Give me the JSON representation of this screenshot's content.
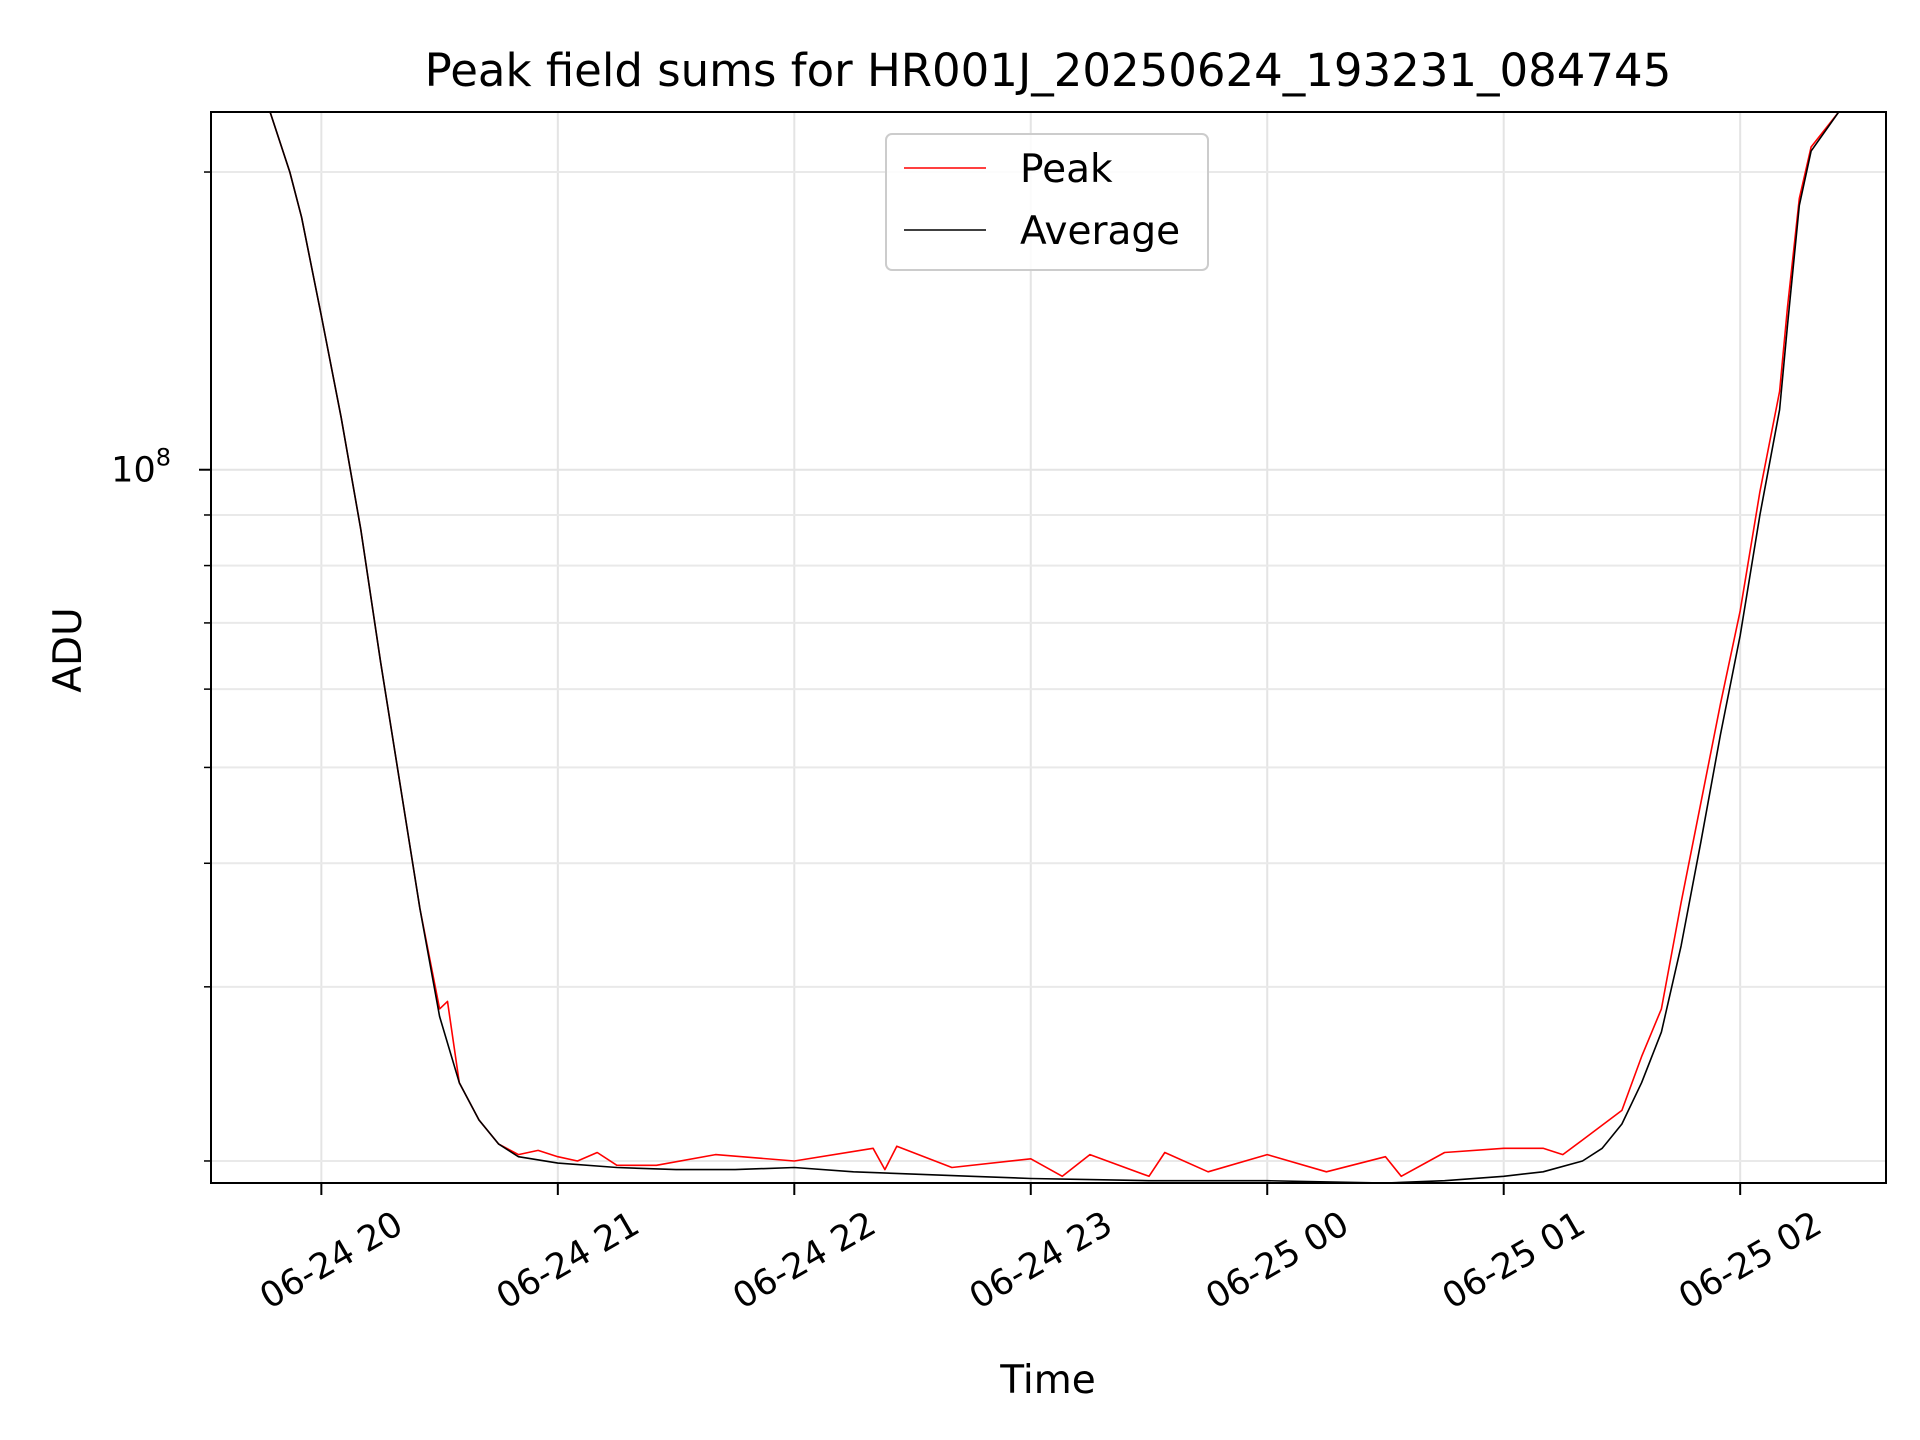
{
  "chart_data": {
    "type": "line",
    "title": "Peak field sums for HR001J_20250624_193231_084745",
    "xlabel": "Time",
    "ylabel": "ADU",
    "y_scale": "log",
    "grid": true,
    "legend_placement": "upper center",
    "xlim": [
      "2025-06-24 19:32",
      "2025-06-25 02:37"
    ],
    "ylim": [
      19000000,
      230000000
    ],
    "x_ticks": [
      "06-24 20",
      "06-24 21",
      "06-24 22",
      "06-24 23",
      "06-25 00",
      "06-25 01",
      "06-25 02"
    ],
    "y_ticks": [
      {
        "base": "10",
        "exp": "8"
      }
    ],
    "series": [
      {
        "name": "Peak",
        "color": "#ff0000",
        "x": [
          "2025-06-24 19:32",
          "2025-06-24 19:47",
          "2025-06-24 19:52",
          "2025-06-24 19:55",
          "2025-06-24 20:00",
          "2025-06-24 20:05",
          "2025-06-24 20:10",
          "2025-06-24 20:15",
          "2025-06-24 20:20",
          "2025-06-24 20:25",
          "2025-06-24 20:30",
          "2025-06-24 20:32",
          "2025-06-24 20:35",
          "2025-06-24 20:40",
          "2025-06-24 20:45",
          "2025-06-24 20:50",
          "2025-06-24 20:55",
          "2025-06-24 21:00",
          "2025-06-24 21:05",
          "2025-06-24 21:10",
          "2025-06-24 21:15",
          "2025-06-24 21:25",
          "2025-06-24 21:40",
          "2025-06-24 22:00",
          "2025-06-24 22:20",
          "2025-06-24 22:23",
          "2025-06-24 22:26",
          "2025-06-24 22:40",
          "2025-06-24 23:00",
          "2025-06-24 23:08",
          "2025-06-24 23:15",
          "2025-06-24 23:30",
          "2025-06-24 23:34",
          "2025-06-24 23:45",
          "2025-06-25 00:00",
          "2025-06-25 00:15",
          "2025-06-25 00:30",
          "2025-06-25 00:34",
          "2025-06-25 00:45",
          "2025-06-25 01:00",
          "2025-06-25 01:10",
          "2025-06-25 01:15",
          "2025-06-25 01:20",
          "2025-06-25 01:30",
          "2025-06-25 01:35",
          "2025-06-25 01:40",
          "2025-06-25 01:45",
          "2025-06-25 01:50",
          "2025-06-25 01:55",
          "2025-06-25 02:00",
          "2025-06-25 02:05",
          "2025-06-25 02:10",
          "2025-06-25 02:12",
          "2025-06-25 02:15",
          "2025-06-25 02:18",
          "2025-06-25 02:25"
        ],
        "y": [
          230000000,
          230000000,
          200000000,
          180000000,
          143000000,
          113000000,
          87000000,
          64000000,
          48000000,
          36000000,
          28500000,
          29000000,
          24000000,
          22000000,
          20800000,
          20300000,
          20500000,
          20200000,
          20000000,
          20400000,
          19800000,
          19800000,
          20300000,
          20000000,
          20600000,
          19600000,
          20700000,
          19700000,
          20100000,
          19300000,
          20300000,
          19300000,
          20400000,
          19500000,
          20300000,
          19500000,
          20200000,
          19300000,
          20400000,
          20600000,
          20600000,
          20300000,
          21000000,
          22500000,
          25500000,
          28500000,
          36500000,
          46000000,
          58000000,
          72000000,
          95000000,
          120000000,
          146000000,
          188000000,
          212000000,
          230000000
        ]
      },
      {
        "name": "Average",
        "color": "#000000",
        "x": [
          "2025-06-24 19:32",
          "2025-06-24 19:47",
          "2025-06-24 19:52",
          "2025-06-24 19:55",
          "2025-06-24 20:00",
          "2025-06-24 20:05",
          "2025-06-24 20:10",
          "2025-06-24 20:15",
          "2025-06-24 20:20",
          "2025-06-24 20:25",
          "2025-06-24 20:30",
          "2025-06-24 20:35",
          "2025-06-24 20:40",
          "2025-06-24 20:45",
          "2025-06-24 20:50",
          "2025-06-24 21:00",
          "2025-06-24 21:15",
          "2025-06-24 21:30",
          "2025-06-24 21:45",
          "2025-06-24 22:00",
          "2025-06-24 22:15",
          "2025-06-24 22:30",
          "2025-06-24 22:45",
          "2025-06-24 23:00",
          "2025-06-24 23:15",
          "2025-06-24 23:30",
          "2025-06-24 23:45",
          "2025-06-25 00:00",
          "2025-06-25 00:15",
          "2025-06-25 00:30",
          "2025-06-25 00:45",
          "2025-06-25 01:00",
          "2025-06-25 01:10",
          "2025-06-25 01:20",
          "2025-06-25 01:25",
          "2025-06-25 01:30",
          "2025-06-25 01:35",
          "2025-06-25 01:40",
          "2025-06-25 01:45",
          "2025-06-25 01:50",
          "2025-06-25 01:55",
          "2025-06-25 02:00",
          "2025-06-25 02:05",
          "2025-06-25 02:10",
          "2025-06-25 02:12",
          "2025-06-25 02:15",
          "2025-06-25 02:18",
          "2025-06-25 02:25"
        ],
        "y": [
          230000000,
          230000000,
          200000000,
          180000000,
          143000000,
          113000000,
          87000000,
          64000000,
          48000000,
          36000000,
          28000000,
          24000000,
          22000000,
          20800000,
          20200000,
          19900000,
          19700000,
          19600000,
          19600000,
          19700000,
          19500000,
          19400000,
          19300000,
          19200000,
          19150000,
          19100000,
          19100000,
          19100000,
          19050000,
          19000000,
          19100000,
          19300000,
          19500000,
          20000000,
          20600000,
          21800000,
          24000000,
          27000000,
          33000000,
          42000000,
          54000000,
          68000000,
          90000000,
          115000000,
          140000000,
          185000000,
          210000000,
          230000000
        ]
      }
    ]
  }
}
